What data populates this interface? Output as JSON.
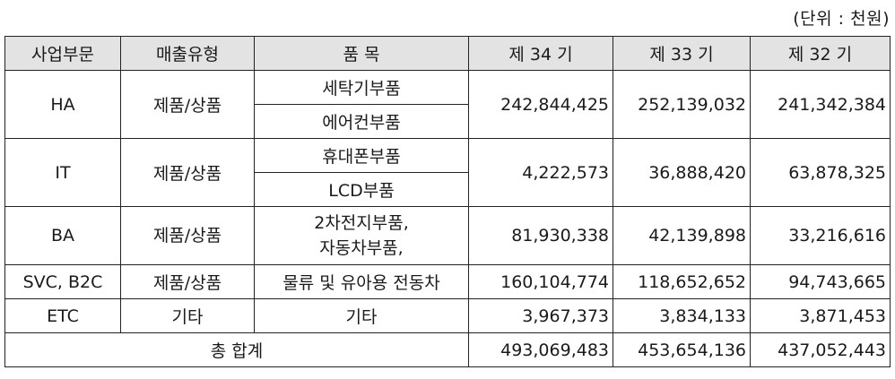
{
  "unit_label": "(단위 : 천원)",
  "table": {
    "headers": [
      "사업부문",
      "매출유형",
      "품 목",
      "제 34 기",
      "제 33 기",
      "제 32 기"
    ],
    "rows": {
      "ha": {
        "segment": "HA",
        "type": "제품/상품",
        "item1": "세탁기부품",
        "item2": "에어컨부품",
        "p34": "242,844,425",
        "p33": "252,139,032",
        "p32": "241,342,384"
      },
      "it": {
        "segment": "IT",
        "type": "제품/상품",
        "item1": "휴대폰부품",
        "item2": "LCD부품",
        "p34": "4,222,573",
        "p33": "36,888,420",
        "p32": "63,878,325"
      },
      "ba": {
        "segment": "BA",
        "type": "제품/상품",
        "item_line1": "2차전지부품,",
        "item_line2": "자동차부품,",
        "p34": "81,930,338",
        "p33": "42,139,898",
        "p32": "33,216,616"
      },
      "svc": {
        "segment": "SVC, B2C",
        "type": "제품/상품",
        "item": "물류 및 유아용 전동차",
        "p34": "160,104,774",
        "p33": "118,652,652",
        "p32": "94,743,665"
      },
      "etc": {
        "segment": "ETC",
        "type": "기타",
        "item": "기타",
        "p34": "3,967,373",
        "p33": "3,834,133",
        "p32": "3,871,453"
      },
      "total": {
        "label": "총 합계",
        "p34": "493,069,483",
        "p33": "453,654,136",
        "p32": "437,052,443"
      }
    }
  }
}
